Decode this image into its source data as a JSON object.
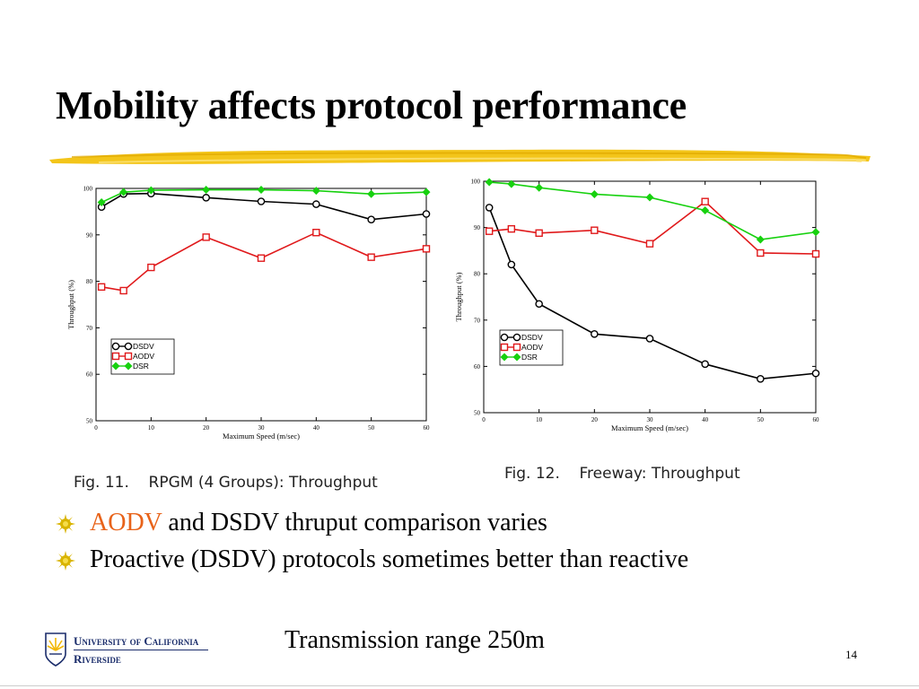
{
  "slide": {
    "title": "Mobility affects protocol performance",
    "bullets": [
      {
        "accent": "AODV",
        "text": " and DSDV thruput comparison varies"
      },
      {
        "accent": "",
        "text": "Proactive (DSDV) protocols sometimes better than reactive"
      }
    ],
    "footer_text": "Transmission range 250m",
    "slide_number": "14",
    "logo": {
      "line1": "University of California",
      "line2": "Riverside"
    },
    "colors": {
      "accent": "#e8631a",
      "brush": "#f2c20e",
      "bullet": "#d9b400"
    }
  },
  "captions": [
    "Fig. 11.    RPGM (4 Groups): Throughput",
    "Fig. 12.    Freeway: Throughput"
  ],
  "chart_data": [
    {
      "type": "line",
      "xlabel": "Maximum Speed (m/sec)",
      "ylabel": "Throughput (%)",
      "xlim": [
        0,
        60
      ],
      "ylim": [
        50,
        100
      ],
      "xticks": [
        0,
        10,
        20,
        30,
        40,
        50,
        60
      ],
      "yticks": [
        50,
        60,
        70,
        80,
        90,
        100
      ],
      "legend_position": "lower-left",
      "series": [
        {
          "name": "DSDV",
          "color": "#000000",
          "marker": "circle",
          "x": [
            1,
            5,
            10,
            20,
            30,
            40,
            50,
            60
          ],
          "y": [
            96,
            98.8,
            98.9,
            98,
            97.2,
            96.6,
            93.3,
            94.5
          ]
        },
        {
          "name": "AODV",
          "color": "#e0191b",
          "marker": "square",
          "x": [
            1,
            5,
            10,
            20,
            30,
            40,
            50,
            60
          ],
          "y": [
            78.8,
            78,
            83,
            89.5,
            85,
            90.5,
            85.2,
            87
          ]
        },
        {
          "name": "DSR",
          "color": "#17d10f",
          "marker": "diamond",
          "x": [
            1,
            5,
            10,
            20,
            30,
            40,
            50,
            60
          ],
          "y": [
            97,
            99.2,
            99.6,
            99.7,
            99.7,
            99.5,
            98.8,
            99.2
          ]
        }
      ]
    },
    {
      "type": "line",
      "xlabel": "Maximum Speed (m/sec)",
      "ylabel": "Throughput (%)",
      "xlim": [
        0,
        60
      ],
      "ylim": [
        50,
        100
      ],
      "xticks": [
        0,
        10,
        20,
        30,
        40,
        50,
        60
      ],
      "yticks": [
        50,
        60,
        70,
        80,
        90,
        100
      ],
      "legend_position": "lower-left",
      "series": [
        {
          "name": "DSDV",
          "color": "#000000",
          "marker": "circle",
          "x": [
            1,
            5,
            10,
            20,
            30,
            40,
            50,
            60
          ],
          "y": [
            94.3,
            82,
            73.5,
            67,
            66,
            60.5,
            57.3,
            58.5
          ]
        },
        {
          "name": "AODV",
          "color": "#e0191b",
          "marker": "square",
          "x": [
            1,
            5,
            10,
            20,
            30,
            40,
            50,
            60
          ],
          "y": [
            89.2,
            89.7,
            88.8,
            89.4,
            86.5,
            95.6,
            84.5,
            84.3
          ]
        },
        {
          "name": "DSR",
          "color": "#17d10f",
          "marker": "diamond",
          "x": [
            1,
            5,
            10,
            20,
            30,
            40,
            50,
            60
          ],
          "y": [
            99.8,
            99.4,
            98.6,
            97.2,
            96.5,
            93.7,
            87.4,
            89
          ]
        }
      ]
    }
  ]
}
